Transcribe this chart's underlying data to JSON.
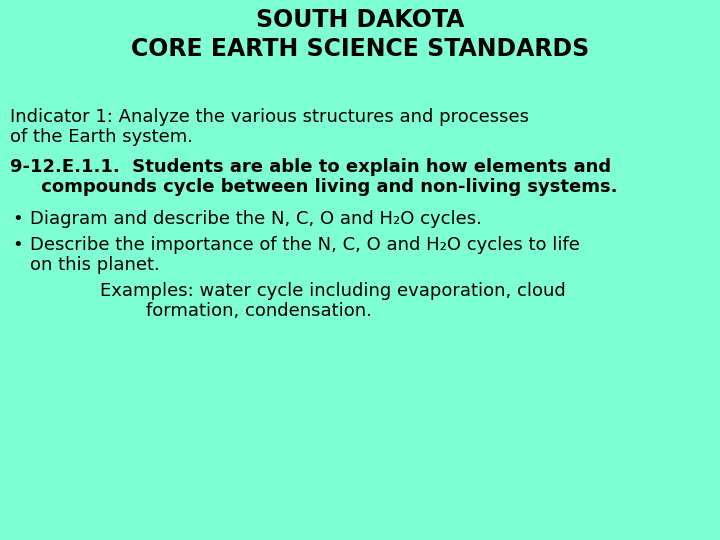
{
  "background_color": "#7FFFD4",
  "title_line1": "SOUTH DAKOTA",
  "title_line2": "CORE EARTH SCIENCE STANDARDS",
  "title_fontsize": 17,
  "title_fontweight": "bold",
  "title_color": "#000000",
  "body_fontsize": 13,
  "body_color": "#000000",
  "body_font": "DejaVu Sans",
  "indicator_line1": "Indicator 1: Analyze the various structures and processes",
  "indicator_line2": "of the Earth system.",
  "standard_line1": "9-12.E.1.1.  Students are able to explain how elements and",
  "standard_line2": "     compounds cycle between living and non-living systems.",
  "bullet1_text": "Diagram and describe the N, C, O and H₂O cycles.",
  "bullet2_line1": "Describe the importance of the N, C, O and H₂O cycles to life",
  "bullet2_line2": "on this planet.",
  "example_line1": "Examples: water cycle including evaporation, cloud",
  "example_line2": "        formation, condensation."
}
